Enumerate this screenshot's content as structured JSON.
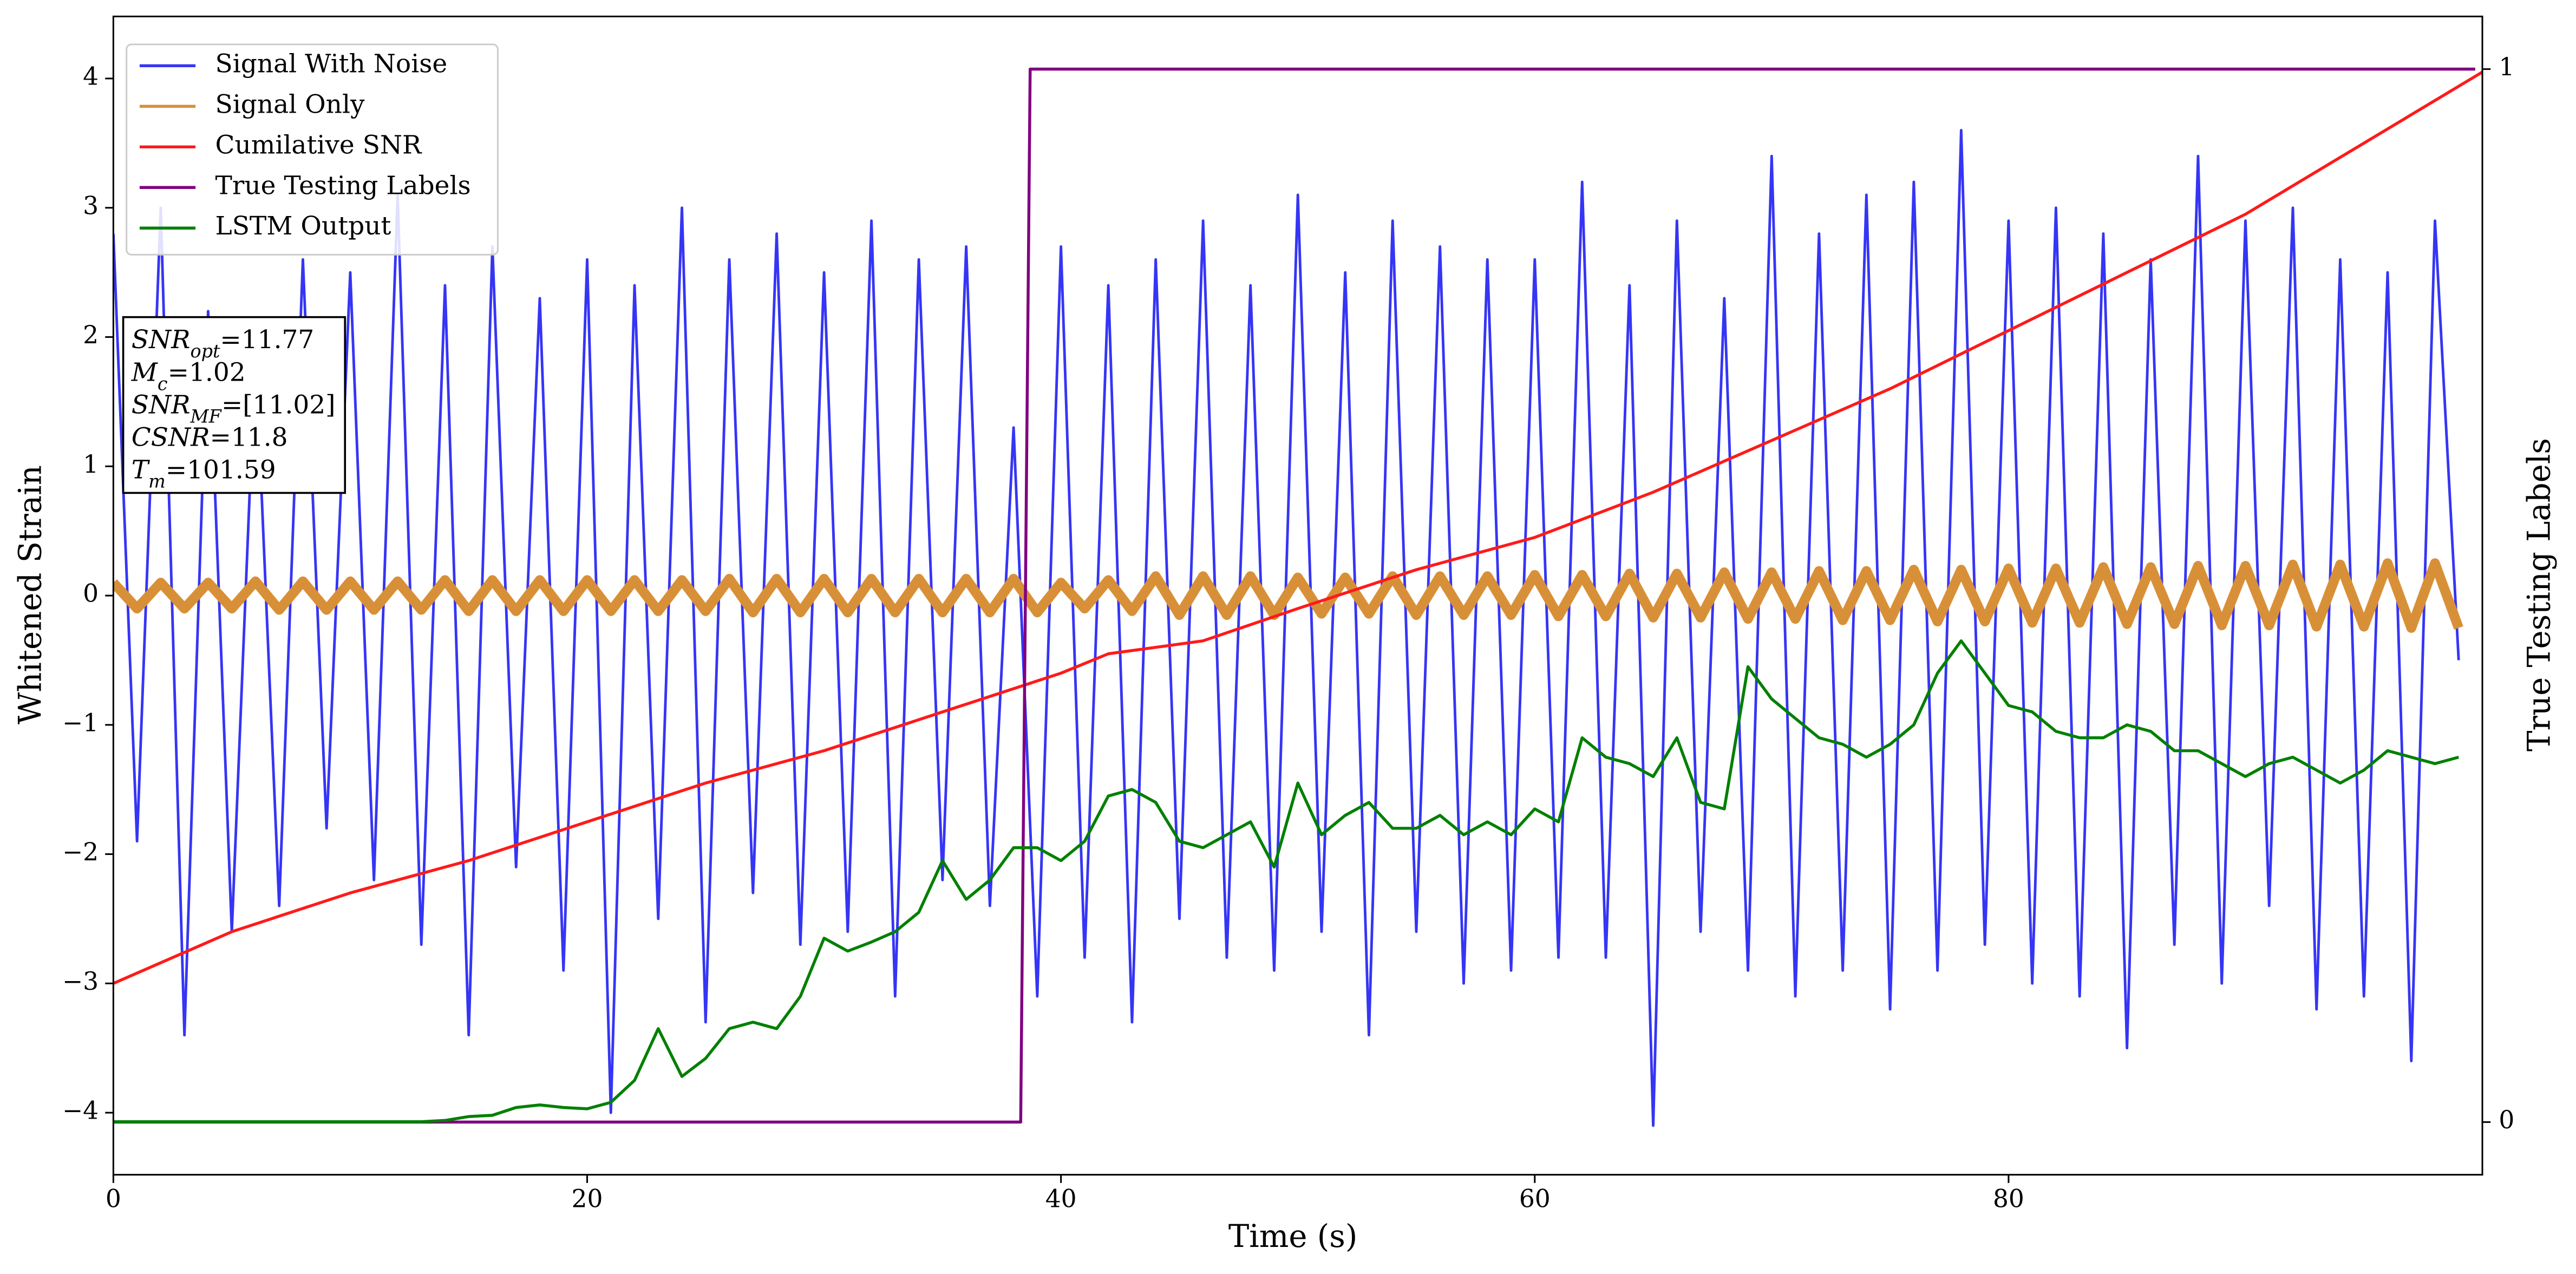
{
  "chart_data": {
    "type": "line",
    "x_label": "Time (s)",
    "y_label": "Whitened Strain",
    "y2_label": "True Testing Labels",
    "xlim": [
      0,
      100
    ],
    "xticks": [
      0,
      20,
      40,
      60,
      80
    ],
    "ylim": [
      -4.48,
      4.48
    ],
    "yticks": [
      {
        "value": -4,
        "label": "−4"
      },
      {
        "value": -3,
        "label": "−3"
      },
      {
        "value": -2,
        "label": "−2"
      },
      {
        "value": -1,
        "label": "−1"
      },
      0,
      1,
      2,
      3,
      4
    ],
    "y2lim": [
      -0.05,
      1.05
    ],
    "y2ticks": [
      0,
      1
    ],
    "legend": "upper left",
    "x": [
      0,
      1,
      2,
      3,
      4,
      5,
      6,
      7,
      8,
      9,
      10,
      11,
      12,
      13,
      14,
      15,
      16,
      17,
      18,
      19,
      20,
      21,
      22,
      23,
      24,
      25,
      26,
      27,
      28,
      29,
      30,
      31,
      32,
      33,
      34,
      35,
      36,
      37,
      38,
      39,
      40,
      41,
      42,
      43,
      44,
      45,
      46,
      47,
      48,
      49,
      50,
      51,
      52,
      53,
      54,
      55,
      56,
      57,
      58,
      59,
      60,
      61,
      62,
      63,
      64,
      65,
      66,
      67,
      68,
      69,
      70,
      71,
      72,
      73,
      74,
      75,
      76,
      77,
      78,
      79,
      80,
      81,
      82,
      83,
      84,
      85,
      86,
      87,
      88,
      89,
      90,
      91,
      92,
      93,
      94,
      95,
      96,
      97,
      98,
      99
    ],
    "series": [
      {
        "name": "Signal With Noise",
        "color": "#3535f5",
        "width": 1.6,
        "values": [
          2.8,
          -1.9,
          3.0,
          -3.4,
          2.2,
          -2.6,
          1.9,
          -2.4,
          2.6,
          -1.8,
          2.5,
          -2.2,
          3.1,
          -2.7,
          2.4,
          -3.4,
          2.7,
          -2.1,
          2.3,
          -2.9,
          2.6,
          -4.0,
          2.4,
          -2.5,
          3.0,
          -3.3,
          2.6,
          -2.3,
          2.8,
          -2.7,
          2.5,
          -2.6,
          2.9,
          -3.1,
          2.6,
          -2.2,
          2.7,
          -2.4,
          1.3,
          -3.1,
          2.7,
          -2.8,
          2.4,
          -3.3,
          2.6,
          -2.5,
          2.9,
          -2.8,
          2.4,
          -2.9,
          3.1,
          -2.6,
          2.5,
          -3.4,
          2.9,
          -2.6,
          2.7,
          -3.0,
          2.6,
          -2.9,
          2.6,
          -2.8,
          3.2,
          -2.8,
          2.4,
          -4.1,
          2.9,
          -2.6,
          2.3,
          -2.9,
          3.4,
          -3.1,
          2.8,
          -2.9,
          3.1,
          -3.2,
          3.2,
          -2.9,
          3.6,
          -2.7,
          2.9,
          -3.0,
          3.0,
          -3.1,
          2.8,
          -3.5,
          2.6,
          -2.7,
          3.4,
          -3.0,
          2.9,
          -2.4,
          3.0,
          -3.2,
          2.6,
          -3.1,
          2.5,
          -3.6,
          2.9,
          -0.5
        ]
      },
      {
        "name": "Signal Only",
        "color": "#d89038",
        "width": 6,
        "values": [
          0.1,
          -0.1,
          0.1,
          -0.1,
          0.1,
          -0.1,
          0.11,
          -0.11,
          0.11,
          -0.11,
          0.11,
          -0.11,
          0.11,
          -0.11,
          0.12,
          -0.12,
          0.12,
          -0.12,
          0.12,
          -0.12,
          0.12,
          -0.12,
          0.12,
          -0.12,
          0.12,
          -0.12,
          0.13,
          -0.13,
          0.13,
          -0.13,
          0.13,
          -0.13,
          0.13,
          -0.13,
          0.13,
          -0.13,
          0.13,
          -0.13,
          0.13,
          -0.13,
          0.1,
          -0.1,
          0.12,
          -0.12,
          0.15,
          -0.15,
          0.15,
          -0.15,
          0.15,
          -0.15,
          0.14,
          -0.14,
          0.14,
          -0.14,
          0.15,
          -0.15,
          0.15,
          -0.15,
          0.15,
          -0.15,
          0.16,
          -0.16,
          0.16,
          -0.16,
          0.17,
          -0.17,
          0.17,
          -0.17,
          0.18,
          -0.18,
          0.18,
          -0.18,
          0.19,
          -0.19,
          0.19,
          -0.19,
          0.2,
          -0.2,
          0.2,
          -0.2,
          0.21,
          -0.21,
          0.21,
          -0.21,
          0.22,
          -0.22,
          0.22,
          -0.22,
          0.23,
          -0.23,
          0.23,
          -0.23,
          0.24,
          -0.24,
          0.24,
          -0.24,
          0.25,
          -0.25,
          0.25,
          -0.25
        ]
      },
      {
        "name": "Cumilative SNR",
        "color": "#ff1a1a",
        "width": 1.8,
        "x": [
          0,
          5,
          10,
          15,
          20,
          25,
          30,
          35,
          40,
          42,
          46,
          50,
          55,
          60,
          65,
          70,
          75,
          80,
          85,
          90,
          95,
          100
        ],
        "values": [
          -3.0,
          -2.6,
          -2.3,
          -2.05,
          -1.75,
          -1.45,
          -1.2,
          -0.9,
          -0.6,
          -0.45,
          -0.35,
          -0.1,
          0.2,
          0.45,
          0.8,
          1.2,
          1.6,
          2.05,
          2.5,
          2.95,
          3.5,
          4.05
        ]
      },
      {
        "name": "True Testing Labels",
        "color": "#800080",
        "width": 1.8,
        "axis": "y2",
        "x": [
          0,
          38.3,
          38.7,
          99.7
        ],
        "values": [
          0,
          0,
          1,
          1
        ]
      },
      {
        "name": "LSTM Output",
        "color": "#008000",
        "width": 1.8,
        "values": [
          -4.07,
          -4.07,
          -4.07,
          -4.07,
          -4.07,
          -4.07,
          -4.07,
          -4.07,
          -4.07,
          -4.07,
          -4.07,
          -4.07,
          -4.07,
          -4.07,
          -4.06,
          -4.03,
          -4.02,
          -3.96,
          -3.94,
          -3.96,
          -3.97,
          -3.92,
          -3.75,
          -3.35,
          -3.72,
          -3.58,
          -3.35,
          -3.3,
          -3.35,
          -3.1,
          -2.65,
          -2.75,
          -2.68,
          -2.6,
          -2.45,
          -2.05,
          -2.35,
          -2.2,
          -1.95,
          -1.95,
          -2.05,
          -1.9,
          -1.55,
          -1.5,
          -1.6,
          -1.9,
          -1.95,
          -1.85,
          -1.75,
          -2.1,
          -1.45,
          -1.85,
          -1.7,
          -1.6,
          -1.8,
          -1.8,
          -1.7,
          -1.85,
          -1.75,
          -1.85,
          -1.65,
          -1.75,
          -1.1,
          -1.25,
          -1.3,
          -1.4,
          -1.1,
          -1.6,
          -1.65,
          -0.55,
          -0.8,
          -0.95,
          -1.1,
          -1.15,
          -1.25,
          -1.15,
          -1.0,
          -0.6,
          -0.35,
          -0.6,
          -0.85,
          -0.9,
          -1.05,
          -1.1,
          -1.1,
          -1.0,
          -1.05,
          -1.2,
          -1.2,
          -1.3,
          -1.4,
          -1.3,
          -1.25,
          -1.35,
          -1.45,
          -1.35,
          -1.2,
          -1.25,
          -1.3,
          -1.25
        ]
      }
    ],
    "annotation": [
      {
        "name": "SNR",
        "sub": "opt",
        "text": "=11.77"
      },
      {
        "name": "M",
        "sub": "c",
        "text": "=1.02"
      },
      {
        "name": "SNR",
        "sub": "MF",
        "text": "=[11.02]"
      },
      {
        "name": "CSNR",
        "sub": null,
        "text": "=11.8"
      },
      {
        "name": "T",
        "sub": "m",
        "text": "=101.59"
      }
    ]
  }
}
